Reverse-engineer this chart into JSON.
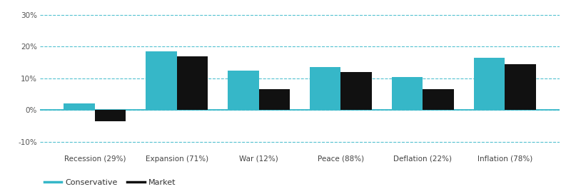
{
  "categories": [
    "Recession (29%)",
    "Expansion (71%)",
    "War (12%)",
    "Peace (88%)",
    "Deflation (22%)",
    "Inflation (78%)"
  ],
  "conservative": [
    2.0,
    18.5,
    12.5,
    13.5,
    10.5,
    16.5
  ],
  "market": [
    -3.5,
    17.0,
    6.5,
    12.0,
    6.5,
    14.5
  ],
  "conservative_color": "#36B7C8",
  "market_color": "#111111",
  "bar_width": 0.38,
  "ylim": [
    -13,
    31
  ],
  "yticks": [
    -10,
    0,
    10,
    20,
    30
  ],
  "ytick_labels": [
    "-10%",
    "0%",
    "10%",
    "20%",
    "30%"
  ],
  "grid_color": "#36B7C8",
  "background_color": "#ffffff",
  "legend_conservative": "Conservative",
  "legend_market": "Market",
  "axis_line_color": "#36B7C8",
  "tick_label_fontsize": 7.5,
  "legend_fontsize": 8,
  "xlabel_fontsize": 7.5
}
